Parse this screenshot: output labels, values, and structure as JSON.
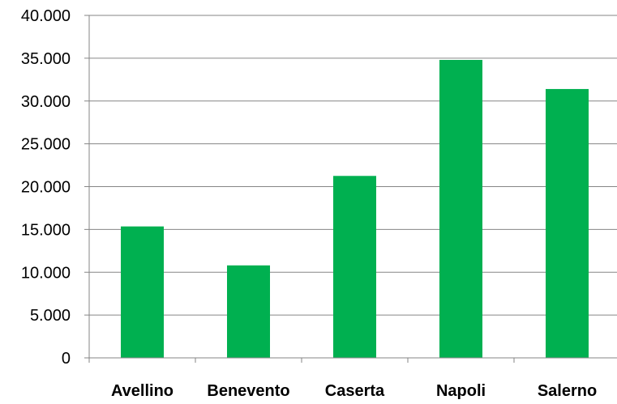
{
  "chart_data": {
    "type": "bar",
    "title": "",
    "xlabel": "",
    "ylabel": "",
    "categories": [
      "Avellino",
      "Benevento",
      "Caserta",
      "Napoli",
      "Salerno"
    ],
    "values": [
      15350,
      10800,
      21250,
      34800,
      31400
    ],
    "ylim": [
      0,
      40000
    ],
    "yticks": [
      0,
      5000,
      10000,
      15000,
      20000,
      25000,
      30000,
      35000,
      40000
    ],
    "ytick_labels": [
      "0",
      "5.000",
      "10.000",
      "15.000",
      "20.000",
      "25.000",
      "30.000",
      "35.000",
      "40.000"
    ],
    "grid": true,
    "legend": "none",
    "colors": {
      "bar": "#00b050",
      "grid": "#868686",
      "axis": "#868686"
    }
  }
}
